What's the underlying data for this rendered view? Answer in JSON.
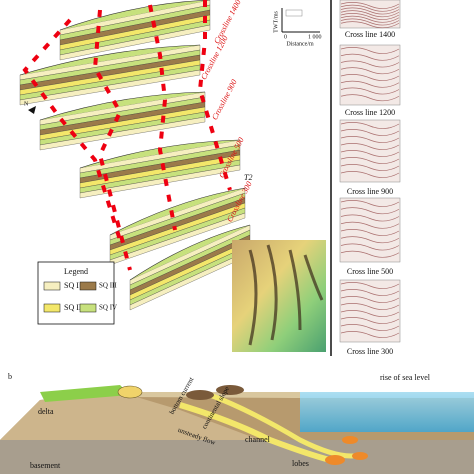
{
  "panel_a": {
    "crosslines": [
      "Crossline 1400",
      "Crossline 1200",
      "Crossline 900",
      "Crossline 500",
      "Crossline 300"
    ],
    "horizon": "T2",
    "north": "N",
    "scale": {
      "y_label": "TWT/ms",
      "x_label": "Distance/m",
      "start": "0",
      "end": "1 000"
    },
    "seismic_sections": [
      "Cross line 1400",
      "Cross line 1200",
      "Cross line 900",
      "Cross line 500",
      "Cross line 300"
    ],
    "legend": {
      "title": "Legend",
      "items": [
        "SQ I",
        "SQ III",
        "SQ II",
        "SQ IV"
      ]
    }
  },
  "panel_b": {
    "label": "b",
    "labels": {
      "sea_level": "rise of sea level",
      "delta": "delta",
      "bottom_current": "bottom current",
      "slope": "continental slope",
      "flow": "unsteady flow",
      "channel": "channel",
      "lobes": "lobes",
      "basement": "basement"
    }
  }
}
